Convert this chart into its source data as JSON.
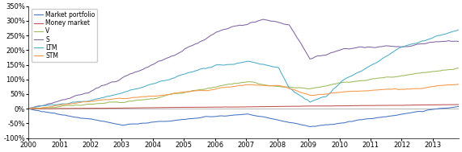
{
  "title": "",
  "xlabel": "",
  "ylabel": "",
  "ylim": [
    -1.0,
    3.5
  ],
  "yticks": [
    -1.0,
    -0.5,
    0.0,
    0.5,
    1.0,
    1.5,
    2.0,
    2.5,
    3.0,
    3.5
  ],
  "ytick_labels": [
    "-100%",
    "-50%",
    "0%",
    "50%",
    "100%",
    "150%",
    "200%",
    "250%",
    "300%",
    "350%"
  ],
  "xlim": [
    2000,
    2013.83
  ],
  "xticks": [
    2000,
    2001,
    2002,
    2003,
    2004,
    2005,
    2006,
    2007,
    2008,
    2009,
    2010,
    2011,
    2012,
    2013
  ],
  "xtick_labels": [
    "2000",
    "2001",
    "2002",
    "2003",
    "2004",
    "2005",
    "2006",
    "2007",
    "2008",
    "2009",
    "2010",
    "2011",
    "2012",
    "2013"
  ],
  "legend_labels": [
    "Market portfolio",
    "Money market",
    "V",
    "S",
    "LTM",
    "STM"
  ],
  "colors": {
    "Market portfolio": "#4472C4",
    "Money market": "#C0504D",
    "V": "#9BBB59",
    "S": "#8064A2",
    "LTM": "#4BACC6",
    "STM": "#F79646"
  },
  "background_color": "#ffffff"
}
